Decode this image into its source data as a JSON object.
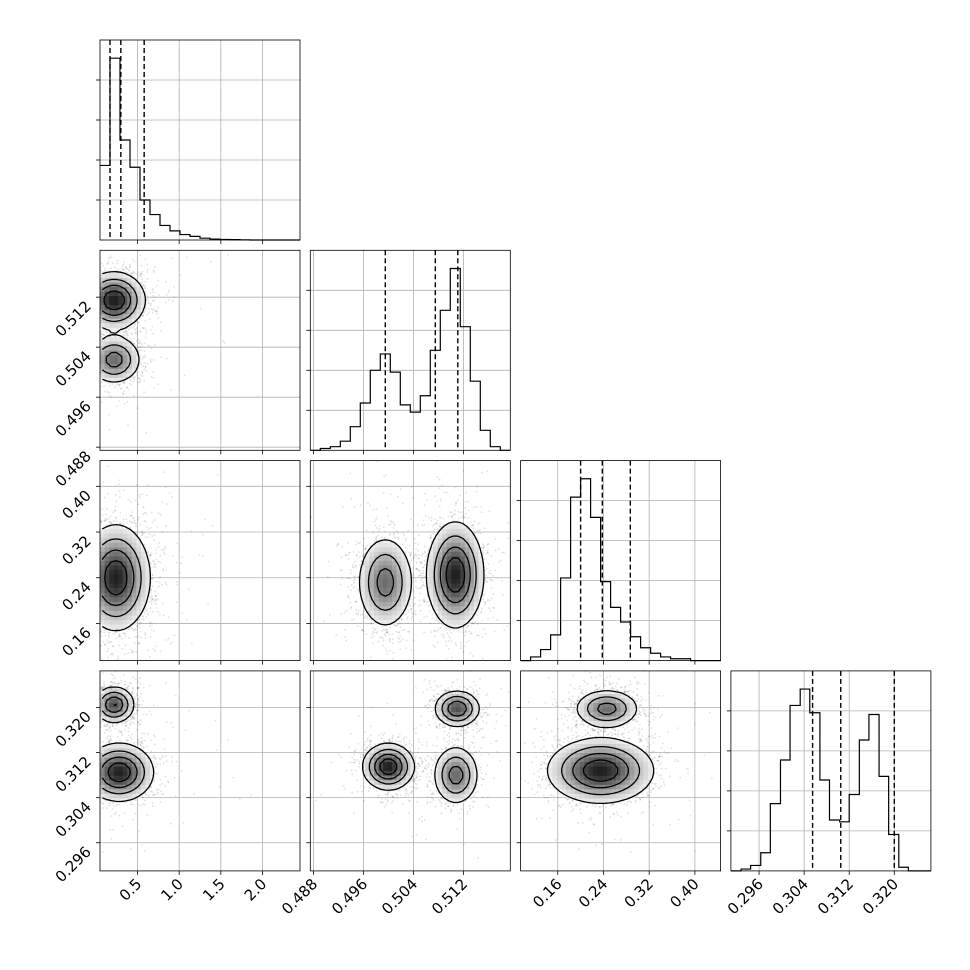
{
  "chart_data": {
    "type": "corner",
    "parameters": [
      {
        "lim": [
          0.05,
          2.45
        ],
        "ticks": [
          0.5,
          1.0,
          1.5,
          2.0
        ],
        "tick_labels": [
          "0.5",
          "1.0",
          "1.5",
          "2.0"
        ],
        "quantiles": [
          0.17,
          0.3,
          0.58
        ]
      },
      {
        "lim": [
          0.4875,
          0.5195
        ],
        "ticks": [
          0.488,
          0.496,
          0.504,
          0.512
        ],
        "tick_labels": [
          "0.488",
          "0.496",
          "0.504",
          "0.512"
        ],
        "quantiles": [
          0.4995,
          0.5075,
          0.5111
        ]
      },
      {
        "lim": [
          0.095,
          0.445
        ],
        "ticks": [
          0.16,
          0.24,
          0.32,
          0.4
        ],
        "tick_labels": [
          "0.16",
          "0.24",
          "0.32",
          "0.40"
        ],
        "quantiles": [
          0.2,
          0.238,
          0.287
        ]
      },
      {
        "lim": [
          0.291,
          0.3265
        ],
        "ticks": [
          0.296,
          0.304,
          0.312,
          0.32
        ],
        "tick_labels": [
          "0.296",
          "0.304",
          "0.312",
          "0.320"
        ],
        "quantiles": [
          0.3055,
          0.3105,
          0.32
        ]
      }
    ],
    "histograms": [
      {
        "bins": [
          0.05,
          0.17,
          0.29,
          0.41,
          0.53,
          0.65,
          0.77,
          0.89,
          1.01,
          1.13,
          1.25,
          1.37,
          1.49,
          1.61,
          1.73,
          1.85,
          1.97,
          2.09,
          2.21,
          2.33,
          2.45
        ],
        "counts": [
          0.41,
          1.0,
          0.55,
          0.4,
          0.22,
          0.14,
          0.08,
          0.05,
          0.03,
          0.02,
          0.01,
          0.005,
          0.003,
          0.002,
          0.001,
          0,
          0,
          0,
          0,
          0
        ]
      },
      {
        "bins": [
          0.4875,
          0.4891,
          0.4907,
          0.4923,
          0.4939,
          0.4955,
          0.4971,
          0.4987,
          0.5003,
          0.5019,
          0.5035,
          0.5051,
          0.5067,
          0.5083,
          0.5099,
          0.5115,
          0.5131,
          0.5147,
          0.5163,
          0.5179,
          0.5195
        ],
        "counts": [
          0.0,
          0.01,
          0.02,
          0.05,
          0.13,
          0.26,
          0.44,
          0.53,
          0.43,
          0.25,
          0.21,
          0.3,
          0.55,
          0.77,
          1.0,
          0.68,
          0.38,
          0.11,
          0.02,
          0.0
        ]
      },
      {
        "bins": [
          0.095,
          0.1125,
          0.13,
          0.1475,
          0.165,
          0.1825,
          0.2,
          0.2175,
          0.235,
          0.2525,
          0.27,
          0.2875,
          0.305,
          0.3225,
          0.34,
          0.3575,
          0.375,
          0.3925,
          0.41,
          0.4275,
          0.445
        ],
        "counts": [
          0.0,
          0.02,
          0.06,
          0.14,
          0.45,
          0.89,
          0.99,
          0.78,
          0.43,
          0.29,
          0.21,
          0.13,
          0.07,
          0.04,
          0.02,
          0.01,
          0.01,
          0,
          0,
          0
        ]
      },
      {
        "bins": [
          0.291,
          0.2928,
          0.2945,
          0.2963,
          0.298,
          0.2998,
          0.3015,
          0.3033,
          0.305,
          0.3068,
          0.3085,
          0.3103,
          0.312,
          0.3138,
          0.3155,
          0.3173,
          0.319,
          0.3208,
          0.3225,
          0.3243,
          0.3265
        ],
        "counts": [
          0.0,
          0.01,
          0.03,
          0.1,
          0.37,
          0.61,
          0.91,
          1.0,
          0.87,
          0.5,
          0.28,
          0.27,
          0.42,
          0.72,
          0.86,
          0.52,
          0.2,
          0.02,
          0.0,
          0.0
        ]
      }
    ],
    "pairs": [
      {
        "row": 1,
        "col": 0,
        "modes": [
          {
            "x": 0.22,
            "y": 0.5115,
            "sx": 0.18,
            "sy": 0.0022,
            "w": 0.6
          },
          {
            "x": 0.22,
            "y": 0.502,
            "sx": 0.16,
            "sy": 0.0019,
            "w": 0.4
          }
        ]
      },
      {
        "row": 2,
        "col": 0,
        "modes": [
          {
            "x": 0.24,
            "y": 0.24,
            "sx": 0.2,
            "sy": 0.045,
            "w": 1.0
          }
        ]
      },
      {
        "row": 2,
        "col": 1,
        "modes": [
          {
            "x": 0.4995,
            "y": 0.232,
            "sx": 0.0022,
            "sy": 0.04,
            "w": 0.4
          },
          {
            "x": 0.5107,
            "y": 0.245,
            "sx": 0.0022,
            "sy": 0.045,
            "w": 0.6
          }
        ]
      },
      {
        "row": 3,
        "col": 0,
        "modes": [
          {
            "x": 0.22,
            "y": 0.3205,
            "sx": 0.12,
            "sy": 0.0016,
            "w": 0.45
          },
          {
            "x": 0.28,
            "y": 0.3085,
            "sx": 0.2,
            "sy": 0.0025,
            "w": 0.55
          }
        ]
      },
      {
        "row": 3,
        "col": 1,
        "modes": [
          {
            "x": 0.5,
            "y": 0.3095,
            "sx": 0.002,
            "sy": 0.002,
            "w": 0.45
          },
          {
            "x": 0.5108,
            "y": 0.308,
            "sx": 0.0018,
            "sy": 0.0026,
            "w": 0.3
          },
          {
            "x": 0.511,
            "y": 0.3198,
            "sx": 0.0018,
            "sy": 0.0016,
            "w": 0.35
          }
        ]
      },
      {
        "row": 3,
        "col": 2,
        "modes": [
          {
            "x": 0.246,
            "y": 0.3198,
            "sx": 0.028,
            "sy": 0.0017,
            "w": 0.4
          },
          {
            "x": 0.235,
            "y": 0.3088,
            "sx": 0.045,
            "sy": 0.0028,
            "w": 0.6
          }
        ]
      }
    ]
  }
}
